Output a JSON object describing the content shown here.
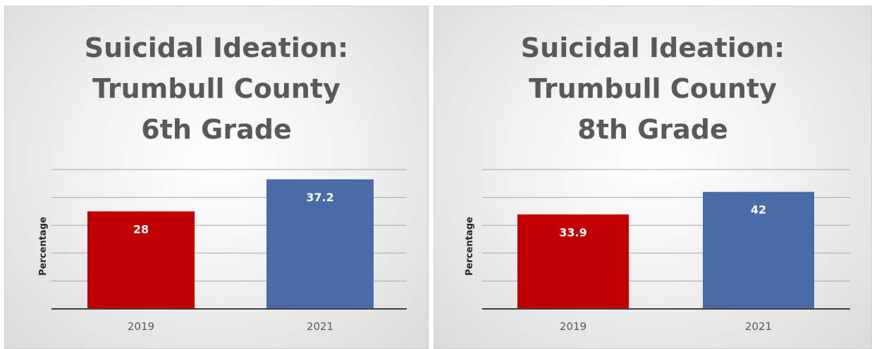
{
  "colors": {
    "series_2019": "#c00000",
    "series_2021": "#4a6aa8",
    "gridline": "#a6a6a6",
    "axis": "#404040"
  },
  "chart_data": [
    {
      "type": "bar",
      "title_lines": [
        "Suicidal Ideation:",
        "Trumbull County",
        "6th Grade"
      ],
      "ylabel": "Percentage",
      "xlabel": "",
      "categories": [
        "2019",
        "2021"
      ],
      "values": [
        28,
        37.2
      ],
      "value_labels": [
        "28",
        "37.2"
      ],
      "bar_colors": [
        "#c00000",
        "#4a6aa8"
      ],
      "ylim": [
        0,
        40
      ],
      "grid": true,
      "legend": "none"
    },
    {
      "type": "bar",
      "title_lines": [
        "Suicidal Ideation:",
        "Trumbull County",
        "8th Grade"
      ],
      "ylabel": "Percentage",
      "xlabel": "",
      "categories": [
        "2019",
        "2021"
      ],
      "values": [
        33.9,
        42
      ],
      "value_labels": [
        "33.9",
        "42"
      ],
      "bar_colors": [
        "#c00000",
        "#4a6aa8"
      ],
      "ylim": [
        0,
        50
      ],
      "grid": true,
      "legend": "none"
    }
  ]
}
